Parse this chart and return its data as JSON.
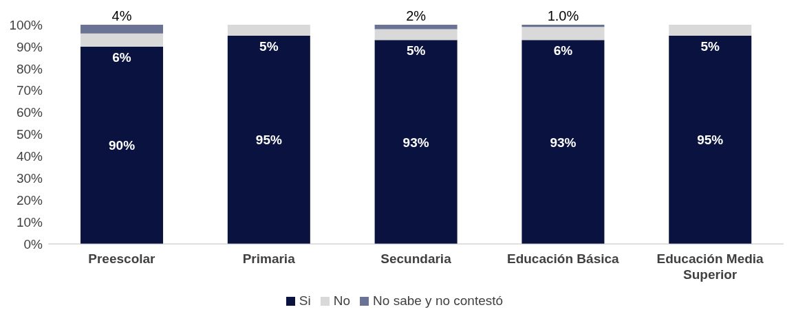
{
  "chart_data": {
    "type": "bar",
    "stacked": true,
    "categories": [
      "Preescolar",
      "Primaria",
      "Secundaria",
      "Educación Básica",
      "Educación Media Superior"
    ],
    "series": [
      {
        "name": "Si",
        "color": "#0a1240",
        "values": [
          90,
          95,
          93,
          93,
          95
        ],
        "value_labels": [
          "90%",
          "95%",
          "93%",
          "93%",
          "95%"
        ]
      },
      {
        "name": "No",
        "color": "#d9d9d9",
        "values": [
          6,
          5,
          5,
          6,
          5
        ],
        "value_labels": [
          "6%",
          "5%",
          "5%",
          "6%",
          "5%"
        ]
      },
      {
        "name": "No sabe y no contestó",
        "color": "#6b7394",
        "values": [
          4,
          null,
          2,
          1.0,
          null
        ],
        "value_labels": [
          "4%",
          null,
          "2%",
          "1.0%",
          null
        ]
      }
    ],
    "ylim": [
      0,
      100
    ],
    "yticks": [
      {
        "value": 0,
        "label": "0%"
      },
      {
        "value": 10,
        "label": "10%"
      },
      {
        "value": 20,
        "label": "20%"
      },
      {
        "value": 30,
        "label": "30%"
      },
      {
        "value": 40,
        "label": "40%"
      },
      {
        "value": 50,
        "label": "50%"
      },
      {
        "value": 60,
        "label": "60%"
      },
      {
        "value": 70,
        "label": "70%"
      },
      {
        "value": 80,
        "label": "80%"
      },
      {
        "value": 90,
        "label": "90%"
      },
      {
        "value": 100,
        "label": "100%"
      }
    ],
    "grid": false,
    "legend": "bottom"
  }
}
